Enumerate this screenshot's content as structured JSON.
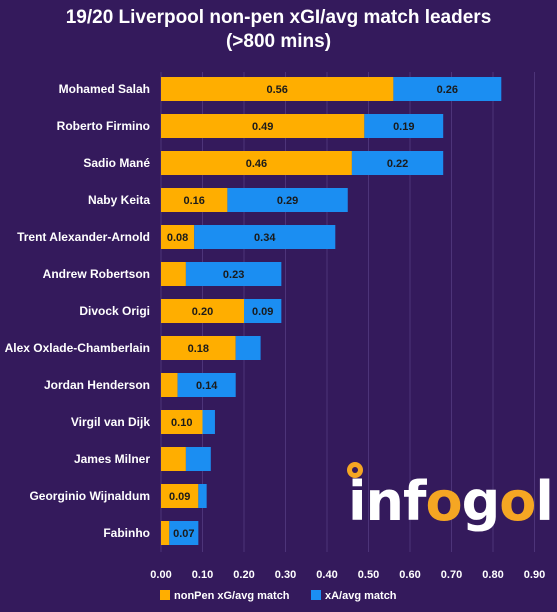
{
  "chart_data": {
    "type": "bar",
    "orientation": "horizontal",
    "stacked": true,
    "title": "19/20 Liverpool non-pen xGI/avg match leaders",
    "subtitle": "(>800 mins)",
    "categories": [
      "Mohamed Salah",
      "Roberto Firmino",
      "Sadio Mané",
      "Naby Keita",
      "Trent Alexander-Arnold",
      "Andrew Robertson",
      "Divock Origi",
      "Alex Oxlade-Chamberlain",
      "Jordan Henderson",
      "Virgil van Dijk",
      "James Milner",
      "Georginio Wijnaldum",
      "Fabinho"
    ],
    "series": [
      {
        "name": "nonPen xG/avg match",
        "color": "#ffae00",
        "values": [
          0.56,
          0.49,
          0.46,
          0.16,
          0.08,
          0.06,
          0.2,
          0.18,
          0.04,
          0.1,
          0.06,
          0.09,
          0.02
        ],
        "labels": [
          "0.56",
          "0.49",
          "0.46",
          "0.16",
          "0.08",
          "",
          "0.20",
          "0.18",
          "",
          "0.10",
          "",
          "0.09",
          ""
        ]
      },
      {
        "name": "xA/avg match",
        "color": "#1b8ef2",
        "values": [
          0.26,
          0.19,
          0.22,
          0.29,
          0.34,
          0.23,
          0.09,
          0.06,
          0.14,
          0.03,
          0.06,
          0.02,
          0.07
        ],
        "labels": [
          "0.26",
          "0.19",
          "0.22",
          "0.29",
          "0.34",
          "0.23",
          "0.09",
          "",
          "0.14",
          "",
          "",
          "",
          "0.07"
        ]
      }
    ],
    "xlim": [
      0,
      0.9
    ],
    "xticks": [
      "0.00",
      "0.10",
      "0.20",
      "0.30",
      "0.40",
      "0.50",
      "0.60",
      "0.70",
      "0.80",
      "0.90"
    ],
    "grid": true,
    "legend_position": "bottom",
    "watermark": "infogol"
  }
}
